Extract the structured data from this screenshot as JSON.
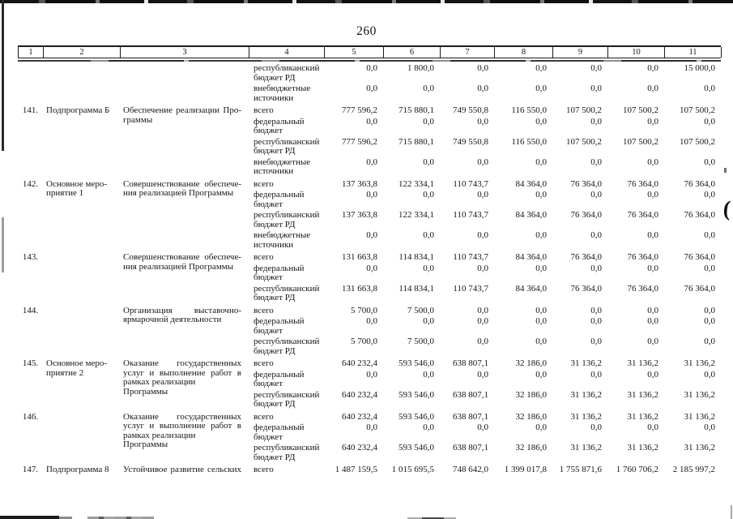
{
  "page": {
    "number": "260"
  },
  "artifacts": {
    "ink_mark": "("
  },
  "table": {
    "header_columns": [
      "1",
      "2",
      "3",
      "4",
      "5",
      "6",
      "7",
      "8",
      "9",
      "10",
      "11"
    ],
    "rows": [
      {
        "num": "",
        "col2": [],
        "col3": [],
        "sources": [
          {
            "label": [
              "республиканский",
              "бюджет РД"
            ],
            "values": [
              "0,0",
              "1 800,0",
              "0,0",
              "0,0",
              "0,0",
              "0,0",
              "15 000,0"
            ]
          },
          {
            "label": [
              "внебюджетные",
              "источники"
            ],
            "values": [
              "0,0",
              "0,0",
              "0,0",
              "0,0",
              "0,0",
              "0,0",
              "0,0"
            ]
          }
        ]
      },
      {
        "num": "141.",
        "col2": [
          "Подпрограмма Б"
        ],
        "col3": [
          "Обеспечение реализации Про-",
          "граммы"
        ],
        "sources": [
          {
            "label": [
              "всего"
            ],
            "values": [
              "777 596,2",
              "715 880,1",
              "749 550,8",
              "116 550,0",
              "107 500,2",
              "107 500,2",
              "107 500,2"
            ]
          },
          {
            "label": [
              "федеральный",
              "бюджет"
            ],
            "values": [
              "0,0",
              "0,0",
              "0,0",
              "0,0",
              "0,0",
              "0,0",
              "0,0"
            ]
          },
          {
            "label": [
              "республиканский",
              "бюджет РД"
            ],
            "values": [
              "777 596,2",
              "715 880,1",
              "749 550,8",
              "116 550,0",
              "107 500,2",
              "107 500,2",
              "107 500,2"
            ]
          },
          {
            "label": [
              "внебюджетные",
              "источники"
            ],
            "values": [
              "0,0",
              "0,0",
              "0,0",
              "0,0",
              "0,0",
              "0,0",
              "0,0"
            ]
          }
        ]
      },
      {
        "num": "142.",
        "col2": [
          "Основное меро-",
          "приятие 1"
        ],
        "col3": [
          "Совершенствование обеспече-",
          "ния реализацией Программы"
        ],
        "sources": [
          {
            "label": [
              "всего"
            ],
            "values": [
              "137 363,8",
              "122 334,1",
              "110 743,7",
              "84 364,0",
              "76 364,0",
              "76 364,0",
              "76 364,0"
            ]
          },
          {
            "label": [
              "федеральный",
              "бюджет"
            ],
            "values": [
              "0,0",
              "0,0",
              "0,0",
              "0,0",
              "0,0",
              "0,0",
              "0,0"
            ]
          },
          {
            "label": [
              "республиканский",
              "бюджет РД"
            ],
            "values": [
              "137 363,8",
              "122 334,1",
              "110 743,7",
              "84 364,0",
              "76 364,0",
              "76 364,0",
              "76 364,0"
            ]
          },
          {
            "label": [
              "внебюджетные",
              "источники"
            ],
            "values": [
              "0,0",
              "0,0",
              "0,0",
              "0,0",
              "0,0",
              "0,0",
              "0,0"
            ]
          }
        ]
      },
      {
        "num": "143.",
        "col2": [],
        "col3": [
          "Совершенствование обеспече-",
          "ния реализацией Программы"
        ],
        "sources": [
          {
            "label": [
              "всего"
            ],
            "values": [
              "131 663,8",
              "114 834,1",
              "110 743,7",
              "84 364,0",
              "76 364,0",
              "76 364,0",
              "76 364,0"
            ]
          },
          {
            "label": [
              "федеральный",
              "бюджет"
            ],
            "values": [
              "0,0",
              "0,0",
              "0,0",
              "0,0",
              "0,0",
              "0,0",
              "0,0"
            ]
          },
          {
            "label": [
              "республиканский",
              "бюджет РД"
            ],
            "values": [
              "131 663,8",
              "114 834,1",
              "110 743,7",
              "84 364,0",
              "76 364,0",
              "76 364,0",
              "76 364,0"
            ]
          }
        ]
      },
      {
        "num": "144.",
        "col2": [],
        "col3": [
          "Организация выставочно-",
          "ярмарочной деятельности"
        ],
        "sources": [
          {
            "label": [
              "всего"
            ],
            "values": [
              "5 700,0",
              "7 500,0",
              "0,0",
              "0,0",
              "0,0",
              "0,0",
              "0,0"
            ]
          },
          {
            "label": [
              "федеральный",
              "бюджет"
            ],
            "values": [
              "0,0",
              "0,0",
              "0,0",
              "0,0",
              "0,0",
              "0,0",
              "0,0"
            ]
          },
          {
            "label": [
              "республиканский",
              "бюджет РД"
            ],
            "values": [
              "5 700,0",
              "7 500,0",
              "0,0",
              "0,0",
              "0,0",
              "0,0",
              "0,0"
            ]
          }
        ]
      },
      {
        "num": "145.",
        "col2": [
          "Основное меро-",
          "приятие 2"
        ],
        "col3": [
          "Оказание государственных",
          "услуг и выполнение работ в",
          "рамках реализации Программы"
        ],
        "sources": [
          {
            "label": [
              "всего"
            ],
            "values": [
              "640 232,4",
              "593 546,0",
              "638 807,1",
              "32 186,0",
              "31 136,2",
              "31 136,2",
              "31 136,2"
            ]
          },
          {
            "label": [
              "федеральный",
              "бюджет"
            ],
            "values": [
              "0,0",
              "0,0",
              "0,0",
              "0,0",
              "0,0",
              "0,0",
              "0,0"
            ]
          },
          {
            "label": [
              "республиканский",
              "бюджет РД"
            ],
            "values": [
              "640 232,4",
              "593 546,0",
              "638 807,1",
              "32 186,0",
              "31 136,2",
              "31 136,2",
              "31 136,2"
            ]
          }
        ]
      },
      {
        "num": "146.",
        "col2": [],
        "col3": [
          "Оказание государственных",
          "услуг и выполнение работ в",
          "рамках реализации Программы"
        ],
        "sources": [
          {
            "label": [
              "всего"
            ],
            "values": [
              "640 232,4",
              "593 546,0",
              "638 807,1",
              "32 186,0",
              "31 136,2",
              "31 136,2",
              "31 136,2"
            ]
          },
          {
            "label": [
              "федеральный",
              "бюджет"
            ],
            "values": [
              "0,0",
              "0,0",
              "0,0",
              "0,0",
              "0,0",
              "0,0",
              "0,0"
            ]
          },
          {
            "label": [
              "республиканский",
              "бюджет РД"
            ],
            "values": [
              "640 232,4",
              "593 546,0",
              "638 807,1",
              "32 186,0",
              "31 136,2",
              "31 136,2",
              "31 136,2"
            ]
          }
        ]
      },
      {
        "num": "147.",
        "col2": [
          "Подпрограмма 8"
        ],
        "col3": [
          "Устойчивое развитие сельских"
        ],
        "sources": [
          {
            "label": [
              "всего"
            ],
            "values": [
              "1 487 159,5",
              "1 015 695,5",
              "748 642,0",
              "1 399 017,8",
              "1 755 871,6",
              "1 760 706,2",
              "2 185 997,2"
            ]
          }
        ]
      }
    ]
  }
}
